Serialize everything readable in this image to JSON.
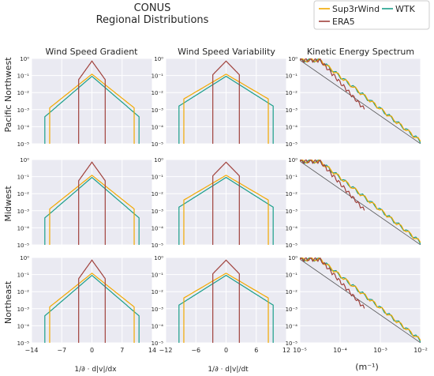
{
  "chart_data": {
    "type": "line",
    "title": "CONUS",
    "subtitle": "Regional Distributions",
    "grid": true,
    "legend_position": "top-right",
    "legend": [
      {
        "name": "Sup3rWind",
        "color": "#f2a900"
      },
      {
        "name": "WTK",
        "color": "#1a9e8a"
      },
      {
        "name": "ERA5",
        "color": "#a0413c"
      }
    ],
    "columns": [
      {
        "title": "Wind Speed Gradient",
        "xscale": "linear",
        "xlim": [
          -14,
          14
        ],
        "xticks": [
          "−14",
          "−7",
          "0",
          "7",
          "14"
        ],
        "xlabel": "1/∂ · d|v|/dx"
      },
      {
        "title": "Wind Speed Variability",
        "xscale": "linear",
        "xlim": [
          -12,
          12
        ],
        "xticks": [
          "−12",
          "−6",
          "0",
          "6",
          "12"
        ],
        "xlabel": "1/∂ · d|v|/dt"
      },
      {
        "title": "Kinetic Energy Spectrum",
        "xscale": "log",
        "xlim": [
          1e-05,
          0.01
        ],
        "xticks": [
          "10⁻⁵",
          "10⁻⁴",
          "10⁻³",
          "10⁻²"
        ],
        "xlabel": "(m⁻¹)"
      }
    ],
    "rows": [
      "Pacific Northwest",
      "Midwest",
      "Northeast"
    ],
    "yscale": "log",
    "ylim": [
      1e-05,
      1
    ],
    "yticks": [
      "10⁰",
      "10⁻¹",
      "10⁻²",
      "10⁻³",
      "10⁻⁴",
      "10⁻⁵"
    ],
    "dist_series": {
      "ERA5": {
        "width": 1.6,
        "floor": 0.0003
      },
      "WTK": {
        "width": 2.6,
        "floor": 0.0001
      },
      "Sup3rWind": {
        "width": 2.8,
        "floor": 0.0001
      }
    },
    "spectrum_reference": {
      "x": [
        1e-05,
        0.01
      ],
      "y": [
        0.8,
        1e-05
      ]
    }
  }
}
